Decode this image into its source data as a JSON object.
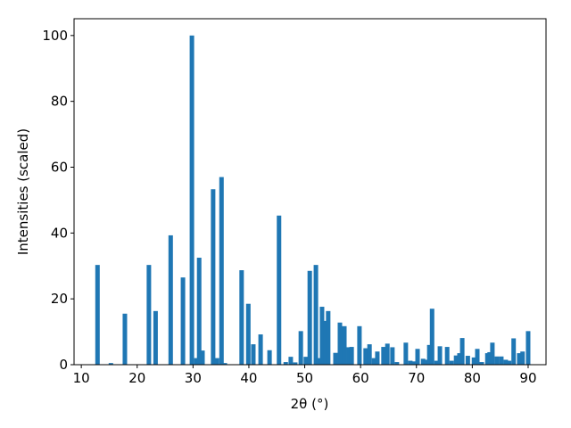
{
  "chart_data": {
    "type": "bar",
    "xlabel": "2θ (°)",
    "ylabel": "Intensities (scaled)",
    "color": "#1f77b4",
    "x": [
      12.9,
      15.3,
      17.8,
      22.1,
      23.3,
      26.0,
      28.2,
      29.8,
      30.6,
      31.1,
      31.7,
      33.6,
      34.3,
      35.1,
      35.7,
      38.7,
      39.9,
      40.8,
      42.1,
      43.7,
      45.4,
      46.6,
      47.5,
      48.3,
      49.3,
      50.2,
      50.9,
      52.0,
      52.5,
      53.1,
      53.8,
      54.2,
      55.5,
      56.3,
      57.1,
      57.9,
      58.4,
      59.8,
      60.9,
      61.6,
      62.4,
      63.0,
      64.1,
      64.8,
      65.7,
      66.5,
      68.1,
      68.9,
      69.4,
      70.2,
      71.2,
      71.6,
      72.3,
      72.8,
      73.6,
      74.2,
      75.5,
      76.3,
      77.1,
      77.7,
      78.2,
      79.2,
      80.3,
      80.9,
      81.7,
      82.7,
      83.1,
      83.6,
      84.4,
      85.2,
      86.0,
      86.6,
      87.4,
      88.4,
      89.0,
      90.0
    ],
    "values": [
      30.3,
      0.5,
      15.5,
      30.3,
      16.3,
      39.3,
      26.5,
      100,
      2,
      32.5,
      4.3,
      53.3,
      2,
      57,
      0.5,
      28.7,
      18.5,
      6.2,
      9.2,
      4.4,
      45.3,
      0.8,
      2.4,
      0.7,
      10.2,
      2.4,
      28.5,
      30.3,
      2,
      17.6,
      13.3,
      16.3,
      3.6,
      12.8,
      11.7,
      5.3,
      5.4,
      11.7,
      5,
      6.2,
      2,
      4,
      5.4,
      6.4,
      5.3,
      0.8,
      6.7,
      1.2,
      1,
      4.8,
      1.8,
      1.5,
      6,
      17,
      1.2,
      5.6,
      5.4,
      1.2,
      2.8,
      3.5,
      8.1,
      2.7,
      2.2,
      4.8,
      0.8,
      3.5,
      3.8,
      6.7,
      2.5,
      2.5,
      1.5,
      1.2,
      8,
      3.5,
      4,
      10.2
    ],
    "xlim": [
      8.7,
      93.2
    ],
    "ylim": [
      0,
      105.1
    ],
    "xticks": [
      10,
      20,
      30,
      40,
      50,
      60,
      70,
      80,
      90
    ],
    "yticks": [
      0,
      20,
      40,
      60,
      80,
      100
    ]
  }
}
